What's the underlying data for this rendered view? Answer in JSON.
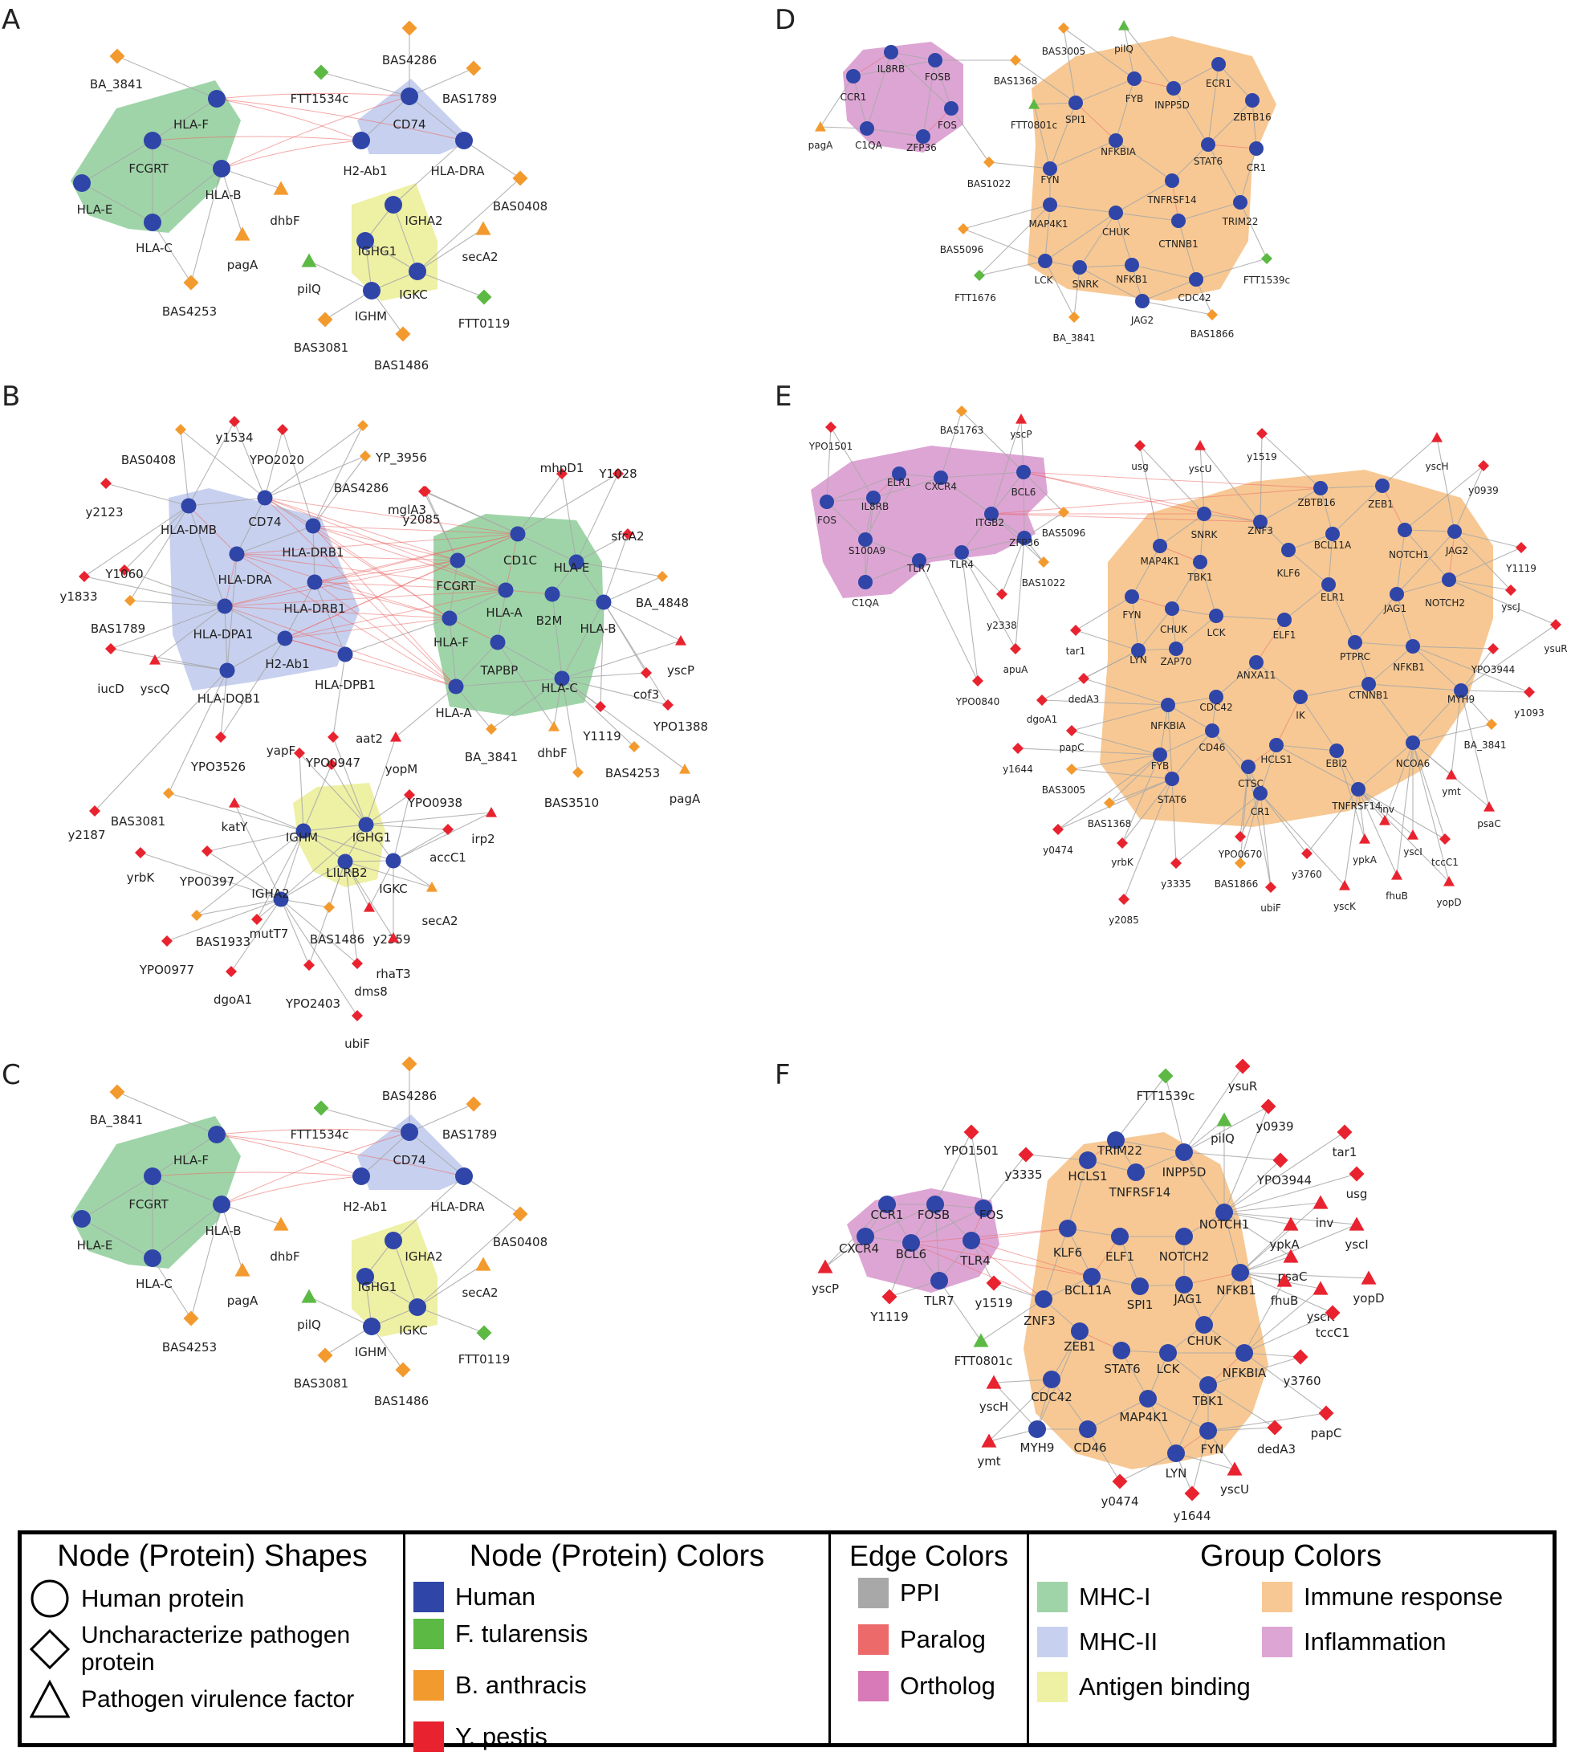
{
  "colors": {
    "human": "#2f45a8",
    "b_anthracis": "#f39a2e",
    "f_tularensis": "#5cb944",
    "y_pestis": "#e8232f",
    "edge_ppi": "#a8a8a8",
    "edge_paralog": "#ec6a6a",
    "edge_ortholog": "#d87ab8",
    "group_mhc1": "#9fd4a8",
    "group_mhc2": "#c7d0ee",
    "group_antigen": "#eef0a4",
    "group_immune": "#f7c893",
    "group_inflammation": "#dda5d4"
  },
  "panels": {
    "A": "A",
    "B": "B",
    "C": "C",
    "D": "D",
    "E": "E",
    "F": "F"
  },
  "legend": {
    "shapes_title": "Node (Protein) Shapes",
    "shapes": [
      {
        "shape": "circle",
        "label": "Human protein"
      },
      {
        "shape": "diamond",
        "label": "Uncharacterize pathogen protein"
      },
      {
        "shape": "triangle",
        "label": "Pathogen virulence factor"
      }
    ],
    "colors_title": "Node (Protein) Colors",
    "node_colors": [
      {
        "key": "human",
        "label": "Human"
      },
      {
        "key": "f_tularensis",
        "label": "F. tularensis"
      },
      {
        "key": "b_anthracis",
        "label": "B. anthracis"
      },
      {
        "key": "y_pestis",
        "label": "Y. pestis"
      }
    ],
    "edges_title": "Edge Colors",
    "edge_colors": [
      {
        "key": "edge_ppi",
        "label": "PPI"
      },
      {
        "key": "edge_paralog",
        "label": "Paralog"
      },
      {
        "key": "edge_ortholog",
        "label": "Ortholog"
      }
    ],
    "groups_title": "Group Colors",
    "group_colors": [
      {
        "key": "group_mhc1",
        "label": "MHC-I"
      },
      {
        "key": "group_immune",
        "label": "Immune response"
      },
      {
        "key": "group_mhc2",
        "label": "MHC-II"
      },
      {
        "key": "group_inflammation",
        "label": "Inflammation"
      },
      {
        "key": "group_antigen",
        "label": "Antigen binding"
      }
    ]
  }
}
